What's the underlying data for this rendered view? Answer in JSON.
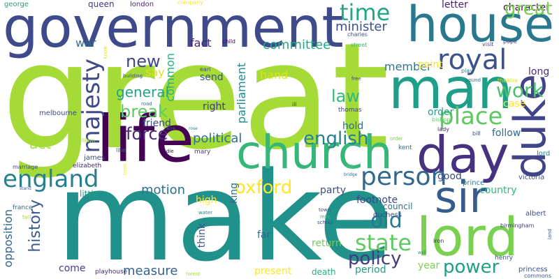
{
  "word_cloud": {
    "background_color": "#ffffff",
    "words": [
      {
        "text": "great",
        "color": "#a5db36"
      },
      {
        "text": "make",
        "color": "#21918c"
      },
      {
        "text": "government",
        "color": "#3e4a89"
      },
      {
        "text": "life",
        "color": "#440154"
      },
      {
        "text": "church",
        "color": "#35b779"
      },
      {
        "text": "house",
        "color": "#2a788e"
      },
      {
        "text": "man",
        "color": "#1f9e89"
      },
      {
        "text": "lord",
        "color": "#7ad151"
      },
      {
        "text": "day",
        "color": "#46327e"
      },
      {
        "text": "duke",
        "color": "#414487"
      },
      {
        "text": "sir",
        "color": "#365c8d"
      },
      {
        "text": "royal",
        "color": "#3b528b"
      },
      {
        "text": "person",
        "color": "#31688e"
      },
      {
        "text": "england",
        "color": "#277f8e"
      },
      {
        "text": "majesty",
        "color": "#3e4a89"
      },
      {
        "text": "place",
        "color": "#5ec962"
      },
      {
        "text": "work",
        "color": "#4ac16d"
      },
      {
        "text": "time",
        "color": "#22a884"
      },
      {
        "text": "state",
        "color": "#5ec962"
      },
      {
        "text": "old",
        "color": "#2a788e"
      },
      {
        "text": "power",
        "color": "#1f9e89"
      },
      {
        "text": "policy",
        "color": "#443a83"
      },
      {
        "text": "oxford",
        "color": "#fde725"
      },
      {
        "text": "english",
        "color": "#26828e"
      },
      {
        "text": "force",
        "color": "#482878"
      },
      {
        "text": "history",
        "color": "#38598c"
      },
      {
        "text": "new",
        "color": "#404688"
      },
      {
        "text": "break",
        "color": "#5ec962"
      },
      {
        "text": "law",
        "color": "#35b779"
      },
      {
        "text": "act",
        "color": "#a5db36"
      },
      {
        "text": "general",
        "color": "#20a386"
      },
      {
        "text": "minister",
        "color": "#3b528b"
      },
      {
        "text": "committee",
        "color": "#22a884"
      },
      {
        "text": "political",
        "color": "#2c728e"
      },
      {
        "text": "opposition",
        "color": "#33638d"
      },
      {
        "text": "motion",
        "color": "#2c728e"
      },
      {
        "text": "parliament",
        "color": "#23898e"
      },
      {
        "text": "measure",
        "color": "#33638d"
      },
      {
        "text": "member",
        "color": "#2a788e"
      },
      {
        "text": "common",
        "color": "#29af7f"
      },
      {
        "text": "letter",
        "color": "#481f70"
      },
      {
        "text": "character",
        "color": "#440154"
      },
      {
        "text": "war",
        "color": "#2e6e8e"
      },
      {
        "text": "fact",
        "color": "#482475"
      },
      {
        "text": "say",
        "color": "#dde318"
      },
      {
        "text": "hand",
        "color": "#dde318"
      },
      {
        "text": "send",
        "color": "#3b528b"
      },
      {
        "text": "right",
        "color": "#453781"
      },
      {
        "text": "friend",
        "color": "#3e4a89"
      },
      {
        "text": "hold",
        "color": "#2e6e8e"
      },
      {
        "text": "point",
        "color": "#fde725"
      },
      {
        "text": "long",
        "color": "#472d7b"
      },
      {
        "text": "case",
        "color": "#fde725"
      },
      {
        "text": "order",
        "color": "#1fa188"
      },
      {
        "text": "follow",
        "color": "#31688e"
      },
      {
        "text": "period",
        "color": "#1fa188"
      },
      {
        "text": "year",
        "color": "#7ad151"
      },
      {
        "text": "present",
        "color": "#fde725"
      },
      {
        "text": "death",
        "color": "#29af7f"
      },
      {
        "text": "come",
        "color": "#433e85"
      },
      {
        "text": "return",
        "color": "#6ece58"
      },
      {
        "text": "far",
        "color": "#31688e"
      },
      {
        "text": "think",
        "color": "#3a548c"
      },
      {
        "text": "high",
        "color": "#fde725"
      },
      {
        "text": "king",
        "color": "#2e6e8e"
      },
      {
        "text": "party",
        "color": "#3e4a89"
      },
      {
        "text": "footnote",
        "color": "#414487"
      },
      {
        "text": "good",
        "color": "#3e4a89"
      },
      {
        "text": "country",
        "color": "#35b779"
      },
      {
        "text": "council",
        "color": "#2c728e"
      },
      {
        "text": "little",
        "color": "#1f9e89"
      },
      {
        "text": "queen",
        "color": "#443a83"
      },
      {
        "text": "london",
        "color": "#481f70"
      },
      {
        "text": "george",
        "color": "#1fa188"
      },
      {
        "text": "company",
        "color": "#fde725"
      },
      {
        "text": "charles",
        "color": "#3b528b"
      },
      {
        "text": "street",
        "color": "#35b779"
      },
      {
        "text": "visit",
        "color": "#414487"
      },
      {
        "text": "pope",
        "color": "#3e4a89"
      },
      {
        "text": "child",
        "color": "#440154"
      },
      {
        "text": "know",
        "color": "#dde318"
      },
      {
        "text": "earl",
        "color": "#404688"
      },
      {
        "text": "road",
        "color": "#2c728e"
      },
      {
        "text": "building",
        "color": "#3e4a89"
      },
      {
        "text": "free",
        "color": "#443a83"
      },
      {
        "text": "play",
        "color": "#2a788e"
      },
      {
        "text": "pound",
        "color": "#2e6e8e"
      },
      {
        "text": "theatre",
        "color": "#dde318"
      },
      {
        "text": "iii",
        "color": "#481f70"
      },
      {
        "text": "thomas",
        "color": "#414487"
      },
      {
        "text": "melbourne",
        "color": "#3e4a89"
      },
      {
        "text": "william",
        "color": "#a5db36"
      },
      {
        "text": "bishop",
        "color": "#5ec962"
      },
      {
        "text": "lady",
        "color": "#481f70"
      },
      {
        "text": "bill",
        "color": "#3e4a89"
      },
      {
        "text": "acre",
        "color": "#2c728e"
      },
      {
        "text": "rose",
        "color": "#26828e"
      },
      {
        "text": "like",
        "color": "#31688e"
      },
      {
        "text": "die",
        "color": "#440154"
      },
      {
        "text": "mary",
        "color": "#443a83"
      },
      {
        "text": "james",
        "color": "#3e4a89"
      },
      {
        "text": "elizabeth",
        "color": "#482878"
      },
      {
        "text": "marriage",
        "color": "#3e4a89"
      },
      {
        "text": "order",
        "color": "#7ad151"
      },
      {
        "text": "kent",
        "color": "#2c728e"
      },
      {
        "text": "hill",
        "color": "#5ec962"
      },
      {
        "text": "bridge",
        "color": "#2e6e8e"
      },
      {
        "text": "prince",
        "color": "#2a788e"
      },
      {
        "text": "victoria",
        "color": "#3b528b"
      },
      {
        "text": "france",
        "color": "#2e6e8e"
      },
      {
        "text": "stand",
        "color": "#3b528b"
      },
      {
        "text": "tell",
        "color": "#a5db36"
      },
      {
        "text": "water",
        "color": "#26828e"
      },
      {
        "text": "town",
        "color": "#3e4a89"
      },
      {
        "text": "mile",
        "color": "#35b779"
      },
      {
        "text": "school",
        "color": "#3b528b"
      },
      {
        "text": "duchess",
        "color": "#3e4a89"
      },
      {
        "text": "albert",
        "color": "#3e4a89"
      },
      {
        "text": "birmingham",
        "color": "#443a83"
      },
      {
        "text": "land",
        "color": "#3b528b"
      },
      {
        "text": "iron",
        "color": "#482475"
      },
      {
        "text": "wall",
        "color": "#26828e"
      },
      {
        "text": "henry",
        "color": "#3e4a89"
      },
      {
        "text": "princess",
        "color": "#3b528b"
      },
      {
        "text": "commons",
        "color": "#3b528b"
      },
      {
        "text": "playhouse",
        "color": "#482878"
      },
      {
        "text": "forest",
        "color": "#a5db36"
      },
      {
        "text": "book",
        "color": "#fde725"
      },
      {
        "text": "great",
        "color": "#7ad151"
      },
      {
        "text": "lord",
        "color": "#26828e"
      }
    ]
  }
}
